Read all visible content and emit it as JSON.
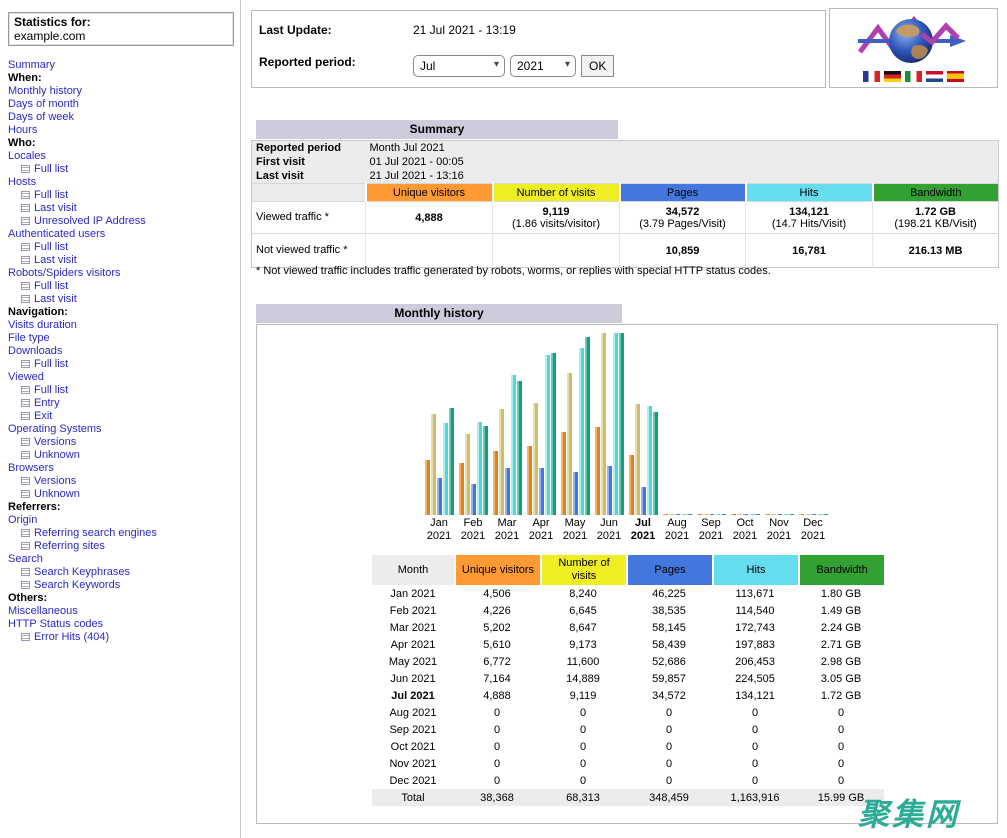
{
  "sidebar": {
    "stats_for_label": "Statistics for:",
    "domain": "example.com",
    "items": [
      {
        "type": "link",
        "label": "Summary"
      },
      {
        "type": "header",
        "label": "When:"
      },
      {
        "type": "link",
        "label": "Monthly history"
      },
      {
        "type": "link",
        "label": "Days of month"
      },
      {
        "type": "link",
        "label": "Days of week"
      },
      {
        "type": "link",
        "label": "Hours"
      },
      {
        "type": "header",
        "label": "Who:"
      },
      {
        "type": "link",
        "label": "Locales"
      },
      {
        "type": "sub",
        "label": "Full list"
      },
      {
        "type": "link",
        "label": "Hosts"
      },
      {
        "type": "sub",
        "label": "Full list"
      },
      {
        "type": "sub",
        "label": "Last visit"
      },
      {
        "type": "sub",
        "label": "Unresolved IP Address"
      },
      {
        "type": "link",
        "label": "Authenticated users"
      },
      {
        "type": "sub",
        "label": "Full list"
      },
      {
        "type": "sub",
        "label": "Last visit"
      },
      {
        "type": "link",
        "label": "Robots/Spiders visitors"
      },
      {
        "type": "sub",
        "label": "Full list"
      },
      {
        "type": "sub",
        "label": "Last visit"
      },
      {
        "type": "header",
        "label": "Navigation:"
      },
      {
        "type": "link",
        "label": "Visits duration"
      },
      {
        "type": "link",
        "label": "File type"
      },
      {
        "type": "link",
        "label": "Downloads"
      },
      {
        "type": "sub",
        "label": "Full list"
      },
      {
        "type": "link",
        "label": "Viewed"
      },
      {
        "type": "sub",
        "label": "Full list"
      },
      {
        "type": "sub",
        "label": "Entry"
      },
      {
        "type": "sub",
        "label": "Exit"
      },
      {
        "type": "link",
        "label": "Operating Systems"
      },
      {
        "type": "sub",
        "label": "Versions"
      },
      {
        "type": "sub",
        "label": "Unknown"
      },
      {
        "type": "link",
        "label": "Browsers"
      },
      {
        "type": "sub",
        "label": "Versions"
      },
      {
        "type": "sub",
        "label": "Unknown"
      },
      {
        "type": "header",
        "label": "Referrers:"
      },
      {
        "type": "link",
        "label": "Origin"
      },
      {
        "type": "sub",
        "label": "Referring search engines"
      },
      {
        "type": "sub",
        "label": "Referring sites"
      },
      {
        "type": "link",
        "label": "Search"
      },
      {
        "type": "sub",
        "label": "Search Keyphrases"
      },
      {
        "type": "sub",
        "label": "Search Keywords"
      },
      {
        "type": "header",
        "label": "Others:"
      },
      {
        "type": "link",
        "label": "Miscellaneous"
      },
      {
        "type": "link",
        "label": "HTTP Status codes"
      },
      {
        "type": "sub",
        "label": "Error Hits (404)"
      }
    ]
  },
  "header": {
    "last_update_label": "Last Update:",
    "last_update_value": "21 Jul 2021 - 13:19",
    "reported_period_label": "Reported period:",
    "month_value": "Jul",
    "year_value": "2021",
    "ok_label": "OK",
    "logo_icon": "awstats-globe-logo",
    "flags": [
      "france",
      "germany",
      "italy",
      "netherlands",
      "spain"
    ]
  },
  "metric_columns": [
    {
      "label": "Unique visitors",
      "color": "#ff9933"
    },
    {
      "label": "Number of visits",
      "color": "#eeee22"
    },
    {
      "label": "Pages",
      "color": "#4477dd"
    },
    {
      "label": "Hits",
      "color": "#66ddee"
    },
    {
      "label": "Bandwidth",
      "color": "#33a033"
    }
  ],
  "summary": {
    "title": "Summary",
    "info_rows": [
      {
        "label": "Reported period",
        "value": "Month Jul 2021"
      },
      {
        "label": "First visit",
        "value": "01 Jul 2021 - 00:05"
      },
      {
        "label": "Last visit",
        "value": "21 Jul 2021 - 13:16"
      }
    ],
    "viewed_label": "Viewed traffic *",
    "viewed": [
      {
        "main": "4,888",
        "sub": ""
      },
      {
        "main": "9,119",
        "sub": "(1.86 visits/visitor)"
      },
      {
        "main": "34,572",
        "sub": "(3.79 Pages/Visit)"
      },
      {
        "main": "134,121",
        "sub": "(14.7 Hits/Visit)"
      },
      {
        "main": "1.72 GB",
        "sub": "(198.21 KB/Visit)"
      }
    ],
    "not_viewed_label": "Not viewed traffic *",
    "not_viewed": [
      "",
      "",
      "10,859",
      "16,781",
      "216.13 MB"
    ],
    "footnote": "* Not viewed traffic includes traffic generated by robots, worms, or replies with special HTTP status codes."
  },
  "chart_data": {
    "type": "bar",
    "title": "Monthly history",
    "categories": [
      "Jan 2021",
      "Feb 2021",
      "Mar 2021",
      "Apr 2021",
      "May 2021",
      "Jun 2021",
      "Jul 2021",
      "Aug 2021",
      "Sep 2021",
      "Oct 2021",
      "Nov 2021",
      "Dec 2021"
    ],
    "current_category": "Jul 2021",
    "grid": false,
    "legend_position": "none",
    "series": [
      {
        "name": "Unique visitors",
        "scale_group": "visits",
        "color": "#e08121",
        "highlight": "#f2b469",
        "values": [
          4506,
          4226,
          5202,
          5610,
          6772,
          7164,
          4888,
          0,
          0,
          0,
          0,
          0
        ]
      },
      {
        "name": "Number of visits",
        "scale_group": "visits",
        "color": "#cdbd6c",
        "highlight": "#e9dfae",
        "values": [
          8240,
          6645,
          8647,
          9173,
          11600,
          14889,
          9119,
          0,
          0,
          0,
          0,
          0
        ]
      },
      {
        "name": "Pages",
        "scale_group": "hits",
        "color": "#4477dd",
        "highlight": "#93b3ee",
        "values": [
          46225,
          38535,
          58145,
          58439,
          52686,
          59857,
          34572,
          0,
          0,
          0,
          0,
          0
        ]
      },
      {
        "name": "Hits",
        "scale_group": "hits",
        "color": "#4fd6d6",
        "highlight": "#b0efef",
        "values": [
          113671,
          114540,
          172743,
          197883,
          206453,
          224505,
          134121,
          0,
          0,
          0,
          0,
          0
        ]
      },
      {
        "name": "Bandwidth (GB)",
        "scale_group": "bandwidth",
        "color": "#11a07b",
        "highlight": "#66c9b2",
        "values": [
          1.8,
          1.49,
          2.24,
          2.71,
          2.98,
          3.05,
          1.72,
          0,
          0,
          0,
          0,
          0
        ]
      }
    ]
  },
  "monthly": {
    "title": "Monthly history",
    "month_col_label": "Month",
    "rows": [
      {
        "month": "Jan 2021",
        "bold": false,
        "values": [
          "4,506",
          "8,240",
          "46,225",
          "113,671",
          "1.80 GB"
        ]
      },
      {
        "month": "Feb 2021",
        "bold": false,
        "values": [
          "4,226",
          "6,645",
          "38,535",
          "114,540",
          "1.49 GB"
        ]
      },
      {
        "month": "Mar 2021",
        "bold": false,
        "values": [
          "5,202",
          "8,647",
          "58,145",
          "172,743",
          "2.24 GB"
        ]
      },
      {
        "month": "Apr 2021",
        "bold": false,
        "values": [
          "5,610",
          "9,173",
          "58,439",
          "197,883",
          "2.71 GB"
        ]
      },
      {
        "month": "May 2021",
        "bold": false,
        "values": [
          "6,772",
          "11,600",
          "52,686",
          "206,453",
          "2.98 GB"
        ]
      },
      {
        "month": "Jun 2021",
        "bold": false,
        "values": [
          "7,164",
          "14,889",
          "59,857",
          "224,505",
          "3.05 GB"
        ]
      },
      {
        "month": "Jul 2021",
        "bold": true,
        "values": [
          "4,888",
          "9,119",
          "34,572",
          "134,121",
          "1.72 GB"
        ]
      },
      {
        "month": "Aug 2021",
        "bold": false,
        "values": [
          "0",
          "0",
          "0",
          "0",
          "0"
        ]
      },
      {
        "month": "Sep 2021",
        "bold": false,
        "values": [
          "0",
          "0",
          "0",
          "0",
          "0"
        ]
      },
      {
        "month": "Oct 2021",
        "bold": false,
        "values": [
          "0",
          "0",
          "0",
          "0",
          "0"
        ]
      },
      {
        "month": "Nov 2021",
        "bold": false,
        "values": [
          "0",
          "0",
          "0",
          "0",
          "0"
        ]
      },
      {
        "month": "Dec 2021",
        "bold": false,
        "values": [
          "0",
          "0",
          "0",
          "0",
          "0"
        ]
      }
    ],
    "total": {
      "label": "Total",
      "values": [
        "38,368",
        "68,313",
        "348,459",
        "1,163,916",
        "15.99 GB"
      ]
    }
  },
  "watermark": "聚集网"
}
